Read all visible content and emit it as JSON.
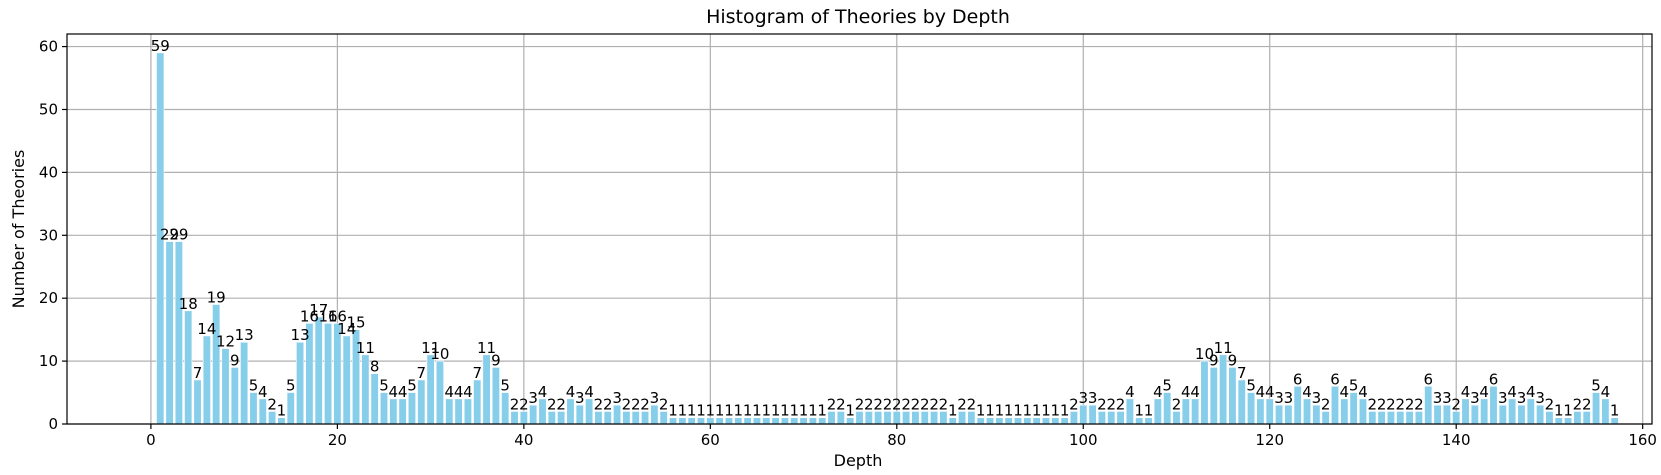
{
  "chart_data": {
    "type": "bar",
    "title": "Histogram of Theories by Depth",
    "xlabel": "Depth",
    "ylabel": "Number of Theories",
    "xlim": [
      -9,
      161
    ],
    "ylim": [
      0,
      62
    ],
    "xticks": [
      0,
      20,
      40,
      60,
      80,
      100,
      120,
      140,
      160
    ],
    "yticks": [
      0,
      10,
      20,
      30,
      40,
      50,
      60
    ],
    "grid": true,
    "bar_color": "#87ceeb",
    "x_start": 1,
    "values": [
      59,
      29,
      29,
      18,
      7,
      14,
      19,
      12,
      9,
      13,
      5,
      4,
      2,
      1,
      5,
      13,
      16,
      17,
      16,
      16,
      14,
      15,
      11,
      8,
      5,
      4,
      4,
      5,
      7,
      11,
      10,
      4,
      4,
      4,
      7,
      11,
      9,
      5,
      2,
      2,
      3,
      4,
      2,
      2,
      4,
      3,
      4,
      2,
      2,
      3,
      2,
      2,
      2,
      3,
      2,
      1,
      1,
      1,
      1,
      1,
      1,
      1,
      1,
      1,
      1,
      1,
      1,
      1,
      1,
      1,
      1,
      1,
      2,
      2,
      1,
      2,
      2,
      2,
      2,
      2,
      2,
      2,
      2,
      2,
      2,
      1,
      2,
      2,
      1,
      1,
      1,
      1,
      1,
      1,
      1,
      1,
      1,
      1,
      2,
      3,
      3,
      2,
      2,
      2,
      4,
      1,
      1,
      4,
      5,
      2,
      4,
      4,
      10,
      9,
      11,
      9,
      7,
      5,
      4,
      4,
      3,
      3,
      6,
      4,
      3,
      2,
      6,
      4,
      5,
      4,
      2,
      2,
      2,
      2,
      2,
      2,
      6,
      3,
      3,
      2,
      4,
      3,
      4,
      6,
      3,
      4,
      3,
      4,
      3,
      2,
      1,
      1,
      2,
      2,
      5,
      4,
      1
    ]
  }
}
